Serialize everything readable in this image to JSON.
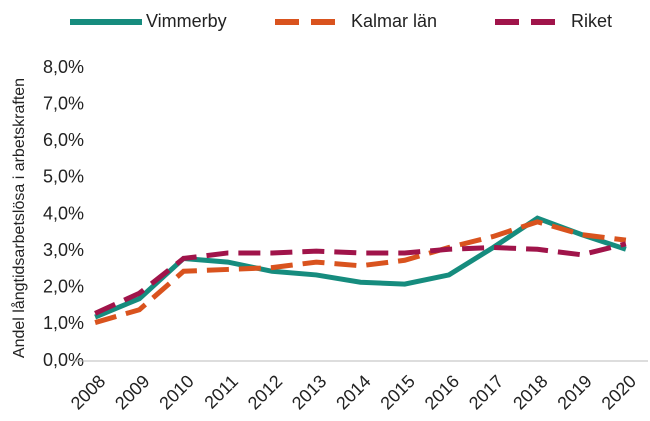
{
  "chart_data": {
    "type": "line",
    "y_label": "Andel långtidsarbetslösa i arbetskraften",
    "categories": [
      "2008",
      "2009",
      "2010",
      "2011",
      "2012",
      "2013",
      "2014",
      "2015",
      "2016",
      "2017",
      "2018",
      "2019",
      "2020"
    ],
    "series": [
      {
        "name": "Vimmerby",
        "color": "#168c7e",
        "dash": "none",
        "values": [
          1.2,
          1.7,
          2.8,
          2.7,
          2.45,
          2.35,
          2.15,
          2.1,
          2.35,
          3.1,
          3.9,
          3.45,
          3.05
        ]
      },
      {
        "name": "Kalmar län",
        "color": "#d9531e",
        "dash": "long",
        "values": [
          1.05,
          1.4,
          2.45,
          2.5,
          2.55,
          2.7,
          2.6,
          2.75,
          3.1,
          3.4,
          3.8,
          3.45,
          3.3
        ]
      },
      {
        "name": "Riket",
        "color": "#a0144a",
        "dash": "long",
        "values": [
          1.3,
          1.85,
          2.8,
          2.95,
          2.95,
          3.0,
          2.95,
          2.95,
          3.05,
          3.1,
          3.05,
          2.9,
          3.2
        ]
      }
    ],
    "ylim": [
      0,
      8
    ],
    "yticks": [
      {
        "value": 0,
        "label": "0,0%"
      },
      {
        "value": 1,
        "label": "1,0%"
      },
      {
        "value": 2,
        "label": "2,0%"
      },
      {
        "value": 3,
        "label": "3,0%"
      },
      {
        "value": 4,
        "label": "4,0%"
      },
      {
        "value": 5,
        "label": "5,0%"
      },
      {
        "value": 6,
        "label": "6,0%"
      },
      {
        "value": 7,
        "label": "7,0%"
      },
      {
        "value": 8,
        "label": "8,0%"
      }
    ],
    "legend": "top"
  }
}
